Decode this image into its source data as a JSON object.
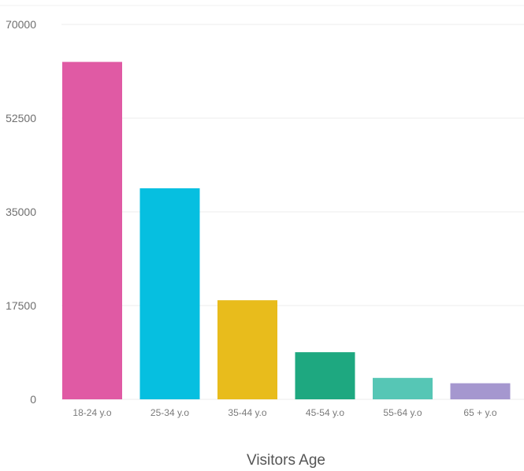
{
  "chart_data": {
    "type": "bar",
    "title": "",
    "xlabel": "Visitors Age",
    "ylabel": "",
    "categories": [
      "18-24 y.o",
      "25-34 y.o",
      "35-44 y.o",
      "45-54 y.o",
      "55-64 y.o",
      "65 + y.o"
    ],
    "values": [
      63000,
      39400,
      18500,
      8800,
      4000,
      3000
    ],
    "colors": [
      "#e05aa4",
      "#06bfe0",
      "#e8bc1c",
      "#1ea880",
      "#56c6b5",
      "#a597cf"
    ],
    "yticks": [
      "0",
      "17500",
      "35000",
      "52500",
      "70000"
    ],
    "ylim": [
      0,
      70000
    ],
    "grid": true,
    "legend": "none"
  }
}
